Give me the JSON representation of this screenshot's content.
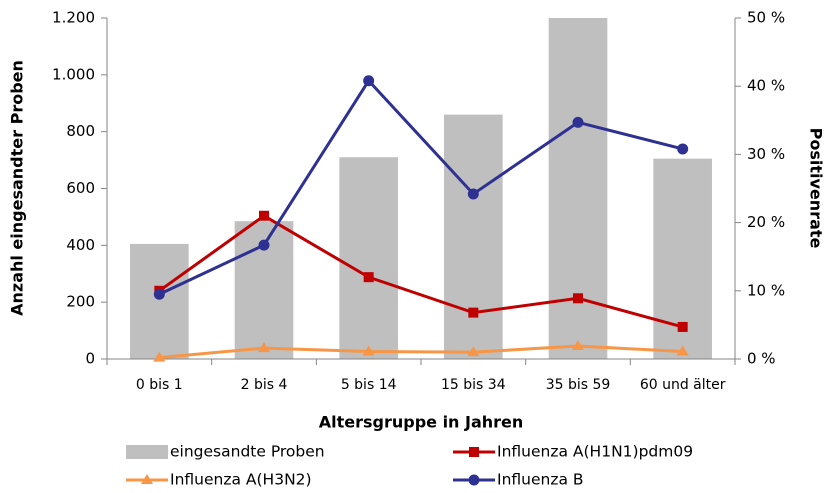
{
  "chart_data": {
    "type": "bar",
    "x_label": "Altersgruppe in Jahren",
    "y_label": "Anzahl eingesandter Proben",
    "y2_label": "Positivenrate",
    "categories": [
      "0 bis 1",
      "2 bis 4",
      "5 bis 14",
      "15 bis 34",
      "35 bis 59",
      "60 und älter"
    ],
    "ylim": [
      0,
      1200
    ],
    "yticks": [
      0,
      200,
      400,
      600,
      800,
      {
        "value": 1000,
        "label": "1.000"
      },
      {
        "value": 1200,
        "label": "1.200"
      }
    ],
    "y2lim": [
      0,
      50
    ],
    "y2ticks": [
      {
        "value": 0,
        "label": "0 %"
      },
      {
        "value": 10,
        "label": "10 %"
      },
      {
        "value": 20,
        "label": "20 %"
      },
      {
        "value": 30,
        "label": "30 %"
      },
      {
        "value": 40,
        "label": "40 %"
      },
      {
        "value": 50,
        "label": "50 %"
      }
    ],
    "grid": false,
    "series": [
      {
        "name": "eingesandte Proben",
        "type": "bar",
        "color": "#bfbfbf",
        "values": [
          405,
          485,
          710,
          860,
          1200,
          705
        ]
      },
      {
        "name": "Influenza A(H1N1)pdm09",
        "type": "line",
        "axis": "y2",
        "marker": "square",
        "color": "#c00000",
        "values": [
          10,
          21,
          12,
          6.8,
          8.9,
          4.7
        ]
      },
      {
        "name": "Influenza A(H3N2)",
        "type": "line",
        "axis": "y2",
        "marker": "triangle",
        "color": "#f79646",
        "values": [
          0.2,
          1.6,
          1.1,
          1.0,
          1.9,
          1.1
        ]
      },
      {
        "name": "Influenza B",
        "type": "line",
        "axis": "y2",
        "marker": "circle",
        "color": "#2e3192",
        "values": [
          9.5,
          16.7,
          40.8,
          24.2,
          34.7,
          30.8
        ]
      }
    ]
  }
}
